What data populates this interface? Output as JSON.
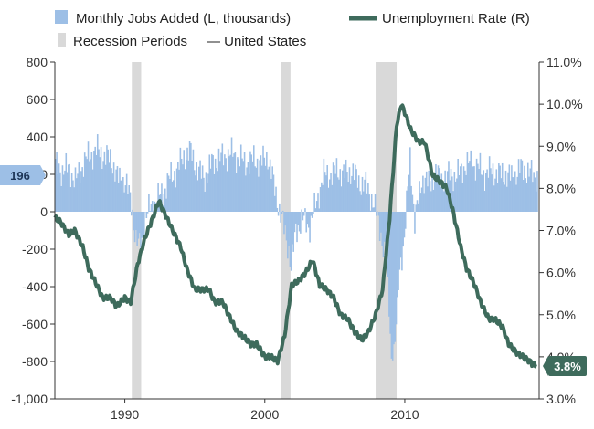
{
  "chart_data": {
    "type": "bar+line",
    "title": "",
    "legend": [
      {
        "key": "jobs",
        "label": "Monthly Jobs Added (L, thousands)",
        "kind": "bar",
        "color": "#9dbfe6"
      },
      {
        "key": "rate",
        "label": "Unemployment Rate (R)",
        "kind": "line",
        "color": "#3e6b5c"
      },
      {
        "key": "recession",
        "label": "Recession Periods",
        "kind": "band",
        "color": "#d9d9d9"
      },
      {
        "key": "us",
        "label": "— United States",
        "kind": "text"
      }
    ],
    "legend_placement": "top",
    "x_axis": {
      "type": "date",
      "range": [
        "1985-01",
        "2019-06"
      ],
      "ticks": [
        "1990",
        "2000",
        "2010"
      ]
    },
    "y_left": {
      "range": [
        -1000,
        800
      ],
      "ticks": [
        "800",
        "600",
        "400",
        "200",
        "0",
        "-200",
        "-400",
        "-600",
        "-800",
        "-1,000"
      ],
      "ticks_values": [
        800,
        600,
        400,
        200,
        0,
        -200,
        -400,
        -600,
        -800,
        -1000
      ]
    },
    "y_right": {
      "range": [
        3.0,
        11.0
      ],
      "ticks": [
        "11.0%",
        "10.0%",
        "9.0%",
        "8.0%",
        "7.0%",
        "6.0%",
        "5.0%",
        "4.0%",
        "3.0%"
      ],
      "ticks_values": [
        11,
        10,
        9,
        8,
        7,
        6,
        5,
        4,
        3
      ]
    },
    "grid": false,
    "recessions": [
      [
        "1990-07",
        "1991-03"
      ],
      [
        "2001-03",
        "2001-11"
      ],
      [
        "2007-12",
        "2009-06"
      ]
    ],
    "jobs_series": {
      "name": "Monthly Jobs Added (L, thousands)",
      "points": [
        [
          "1985-01",
          250
        ],
        [
          "1985-06",
          220
        ],
        [
          "1986-01",
          230
        ],
        [
          "1986-06",
          160
        ],
        [
          "1987-01",
          260
        ],
        [
          "1987-06",
          300
        ],
        [
          "1988-01",
          330
        ],
        [
          "1988-06",
          300
        ],
        [
          "1989-01",
          280
        ],
        [
          "1989-06",
          180
        ],
        [
          "1990-01",
          160
        ],
        [
          "1990-06",
          40
        ],
        [
          "1990-10",
          -150
        ],
        [
          "1991-02",
          -200
        ],
        [
          "1991-06",
          -30
        ],
        [
          "1991-10",
          20
        ],
        [
          "1992-03",
          60
        ],
        [
          "1992-09",
          100
        ],
        [
          "1993-03",
          180
        ],
        [
          "1993-09",
          220
        ],
        [
          "1994-03",
          300
        ],
        [
          "1994-09",
          320
        ],
        [
          "1995-03",
          220
        ],
        [
          "1995-09",
          180
        ],
        [
          "1996-03",
          260
        ],
        [
          "1996-09",
          280
        ],
        [
          "1997-03",
          300
        ],
        [
          "1997-09",
          310
        ],
        [
          "1998-03",
          280
        ],
        [
          "1998-09",
          260
        ],
        [
          "1999-03",
          280
        ],
        [
          "1999-09",
          260
        ],
        [
          "2000-03",
          300
        ],
        [
          "2000-09",
          120
        ],
        [
          "2001-03",
          -40
        ],
        [
          "2001-09",
          -200
        ],
        [
          "2001-11",
          -300
        ],
        [
          "2002-03",
          -100
        ],
        [
          "2002-09",
          -40
        ],
        [
          "2003-03",
          -80
        ],
        [
          "2003-09",
          60
        ],
        [
          "2004-03",
          200
        ],
        [
          "2004-09",
          200
        ],
        [
          "2005-03",
          220
        ],
        [
          "2005-09",
          200
        ],
        [
          "2006-03",
          220
        ],
        [
          "2006-09",
          160
        ],
        [
          "2007-03",
          140
        ],
        [
          "2007-09",
          60
        ],
        [
          "2008-03",
          -80
        ],
        [
          "2008-09",
          -300
        ],
        [
          "2008-12",
          -650
        ],
        [
          "2009-01",
          -780
        ],
        [
          "2009-04",
          -700
        ],
        [
          "2009-08",
          -300
        ],
        [
          "2009-12",
          -150
        ],
        [
          "2010-05",
          300
        ],
        [
          "2010-09",
          -60
        ],
        [
          "2011-03",
          180
        ],
        [
          "2011-09",
          150
        ],
        [
          "2012-03",
          200
        ],
        [
          "2012-09",
          170
        ],
        [
          "2013-03",
          200
        ],
        [
          "2013-09",
          190
        ],
        [
          "2014-03",
          240
        ],
        [
          "2014-09",
          260
        ],
        [
          "2015-03",
          240
        ],
        [
          "2015-09",
          200
        ],
        [
          "2016-03",
          220
        ],
        [
          "2016-09",
          200
        ],
        [
          "2017-03",
          200
        ],
        [
          "2017-09",
          180
        ],
        [
          "2018-03",
          230
        ],
        [
          "2018-09",
          220
        ],
        [
          "2019-03",
          190
        ],
        [
          "2019-06",
          196
        ]
      ]
    },
    "rate_series": {
      "name": "Unemployment Rate (R)",
      "points": [
        [
          "1985-01",
          7.3
        ],
        [
          "1985-06",
          7.2
        ],
        [
          "1986-01",
          6.9
        ],
        [
          "1986-06",
          7.0
        ],
        [
          "1987-01",
          6.6
        ],
        [
          "1987-06",
          6.1
        ],
        [
          "1988-01",
          5.7
        ],
        [
          "1988-06",
          5.4
        ],
        [
          "1989-01",
          5.4
        ],
        [
          "1989-06",
          5.2
        ],
        [
          "1990-01",
          5.4
        ],
        [
          "1990-06",
          5.3
        ],
        [
          "1990-12",
          6.2
        ],
        [
          "1991-06",
          6.8
        ],
        [
          "1992-01",
          7.3
        ],
        [
          "1992-06",
          7.7
        ],
        [
          "1993-01",
          7.3
        ],
        [
          "1993-06",
          7.0
        ],
        [
          "1994-01",
          6.6
        ],
        [
          "1994-06",
          6.1
        ],
        [
          "1995-01",
          5.6
        ],
        [
          "1995-06",
          5.6
        ],
        [
          "1996-01",
          5.6
        ],
        [
          "1996-06",
          5.3
        ],
        [
          "1997-01",
          5.3
        ],
        [
          "1997-06",
          5.0
        ],
        [
          "1998-01",
          4.6
        ],
        [
          "1998-06",
          4.5
        ],
        [
          "1999-01",
          4.3
        ],
        [
          "1999-06",
          4.3
        ],
        [
          "2000-01",
          4.0
        ],
        [
          "2000-06",
          4.0
        ],
        [
          "2000-12",
          3.9
        ],
        [
          "2001-06",
          4.5
        ],
        [
          "2001-12",
          5.7
        ],
        [
          "2002-06",
          5.8
        ],
        [
          "2002-12",
          6.0
        ],
        [
          "2003-06",
          6.3
        ],
        [
          "2003-12",
          5.7
        ],
        [
          "2004-06",
          5.6
        ],
        [
          "2004-12",
          5.4
        ],
        [
          "2005-06",
          5.0
        ],
        [
          "2005-12",
          4.9
        ],
        [
          "2006-06",
          4.6
        ],
        [
          "2006-12",
          4.4
        ],
        [
          "2007-06",
          4.6
        ],
        [
          "2007-12",
          5.0
        ],
        [
          "2008-06",
          5.6
        ],
        [
          "2008-12",
          7.3
        ],
        [
          "2009-06",
          9.5
        ],
        [
          "2009-10",
          10.0
        ],
        [
          "2010-01",
          9.8
        ],
        [
          "2010-06",
          9.4
        ],
        [
          "2011-01",
          9.1
        ],
        [
          "2011-06",
          9.1
        ],
        [
          "2012-01",
          8.3
        ],
        [
          "2012-06",
          8.2
        ],
        [
          "2013-01",
          8.0
        ],
        [
          "2013-06",
          7.5
        ],
        [
          "2014-01",
          6.6
        ],
        [
          "2014-06",
          6.1
        ],
        [
          "2015-01",
          5.7
        ],
        [
          "2015-06",
          5.3
        ],
        [
          "2016-01",
          4.9
        ],
        [
          "2016-06",
          4.9
        ],
        [
          "2017-01",
          4.7
        ],
        [
          "2017-06",
          4.3
        ],
        [
          "2018-01",
          4.1
        ],
        [
          "2018-06",
          4.0
        ],
        [
          "2018-12",
          3.9
        ],
        [
          "2019-03",
          3.8
        ],
        [
          "2019-06",
          3.8
        ]
      ]
    },
    "callouts": {
      "jobs_latest": "196",
      "rate_latest": "3.8%"
    }
  }
}
